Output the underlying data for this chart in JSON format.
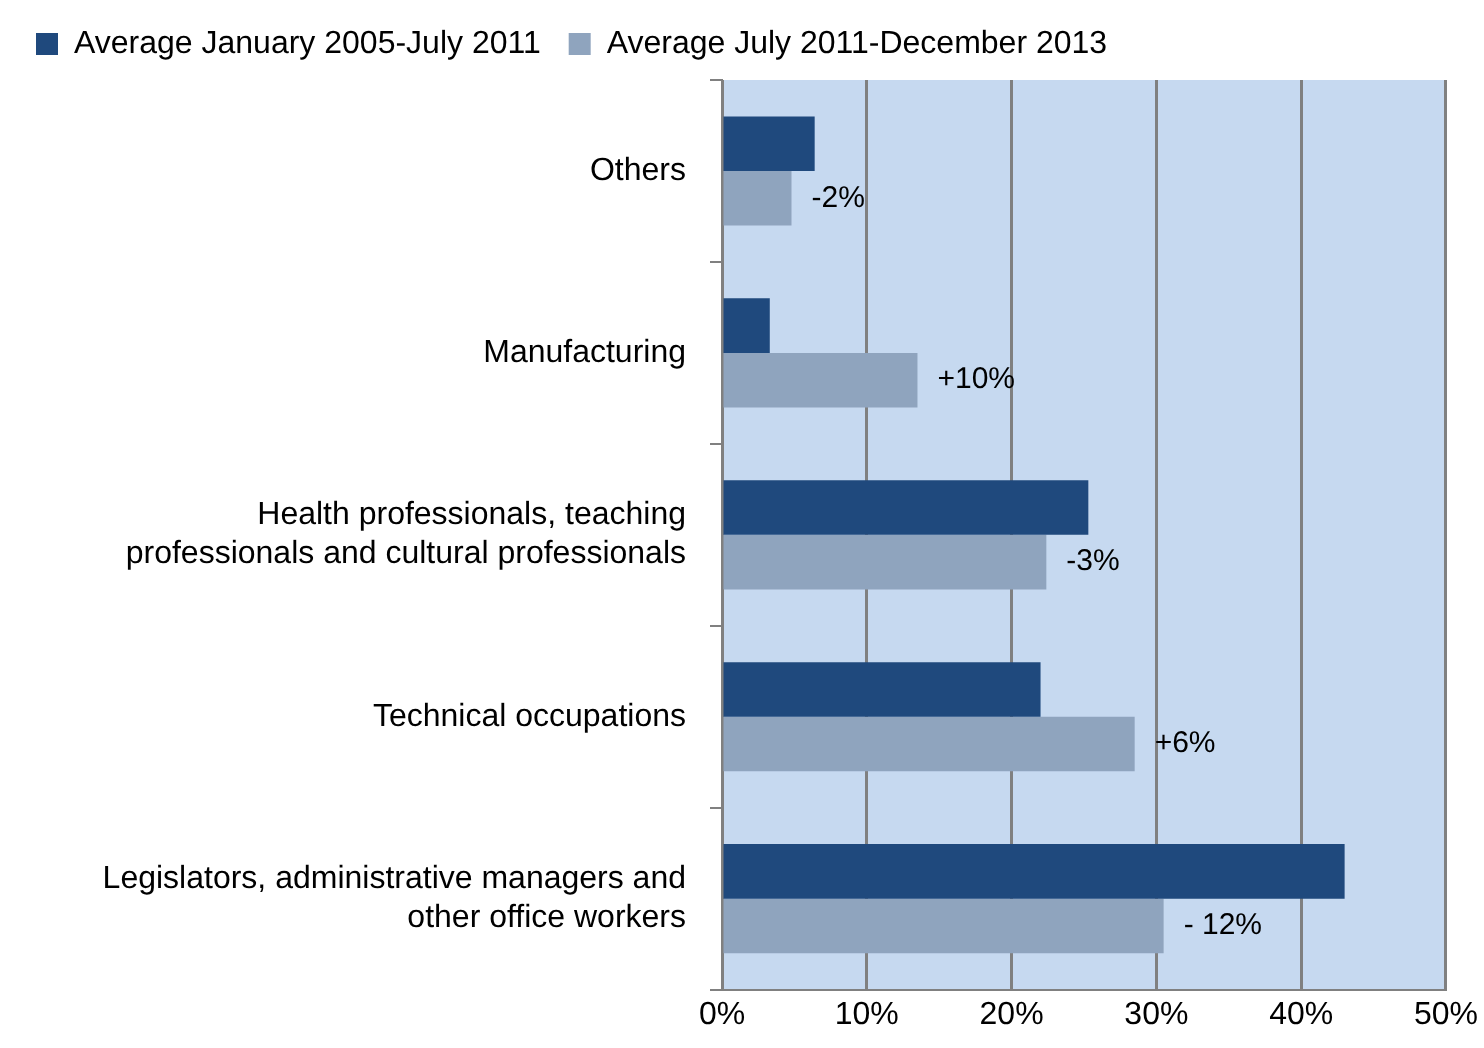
{
  "chart_data": {
    "type": "bar",
    "orientation": "horizontal",
    "categories": [
      "Others",
      "Manufacturing",
      "Health professionals, teaching professionals and cultural professionals",
      "Technical occupations",
      "Legislators, administrative managers and other office workers"
    ],
    "series": [
      {
        "name": "Average January 2005-July 2011",
        "color": "#1f497d",
        "values": [
          6.4,
          3.3,
          25.3,
          22.0,
          43.0
        ]
      },
      {
        "name": "Average July 2011-December 2013",
        "color": "#8fa4be",
        "values": [
          4.8,
          13.5,
          22.4,
          28.5,
          30.5
        ]
      }
    ],
    "xlim": [
      0,
      50
    ],
    "xticks": [
      {
        "value": 0,
        "label": "0%"
      },
      {
        "value": 10,
        "label": "10%"
      },
      {
        "value": 20,
        "label": "20%"
      },
      {
        "value": 30,
        "label": "30%"
      },
      {
        "value": 40,
        "label": "40%"
      },
      {
        "value": 50,
        "label": "50%"
      }
    ],
    "grid": "x",
    "legend": "top",
    "annotations": [
      {
        "text": "-2%",
        "x": 4.8,
        "y": "Others"
      },
      {
        "text": "+10%",
        "x": 13.5,
        "y": "Manufacturing"
      },
      {
        "text": "-3%",
        "x": 22.4,
        "y": "Health professionals, teaching professionals and cultural professionals"
      },
      {
        "text": "+6%",
        "x": 28.5,
        "y": "Technical occupations"
      },
      {
        "text": "- 12%",
        "x": 30.5,
        "y": "Legislators, administrative managers and other office workers"
      }
    ]
  }
}
